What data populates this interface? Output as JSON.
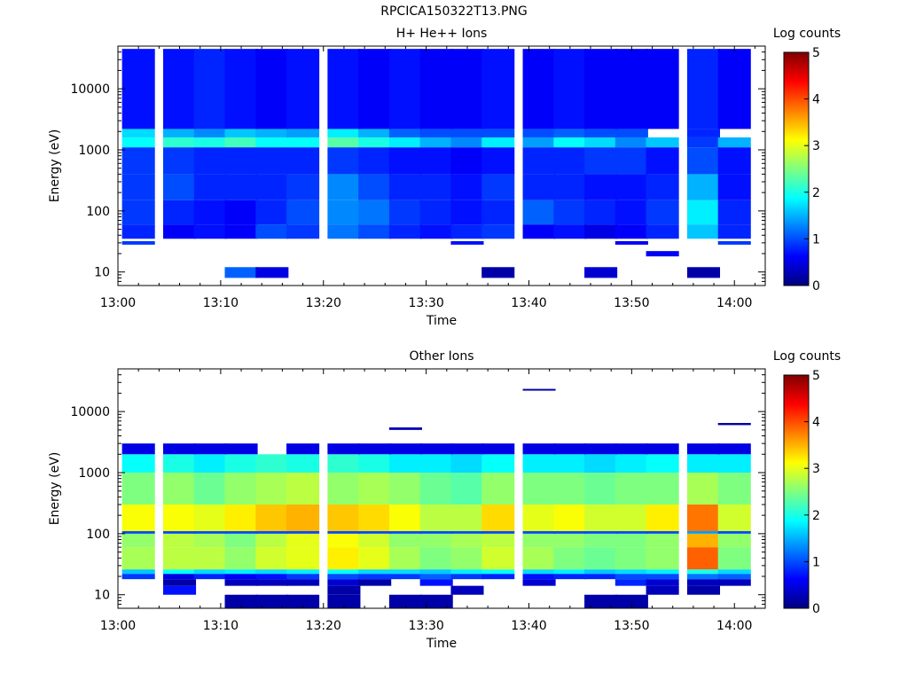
{
  "figure": {
    "title": "RPCICA150322T13.PNG"
  },
  "colormap": [
    "#00007f",
    "#0000ff",
    "#007fff",
    "#00ffff",
    "#7fff7f",
    "#ffff00",
    "#ff7f00",
    "#ff0000",
    "#7f0000"
  ],
  "chart_data": [
    {
      "type": "heatmap",
      "title": "H+ He++ Ions",
      "xlabel": "Time",
      "ylabel": "Energy (eV)",
      "x_ticks": [
        "13:00",
        "13:10",
        "13:20",
        "13:30",
        "13:40",
        "13:50",
        "14:00"
      ],
      "xlim": [
        "13:00",
        "14:03"
      ],
      "y_scale": "log",
      "ylim": [
        6,
        50000
      ],
      "y_ticks": [
        10,
        100,
        1000,
        10000
      ],
      "y_tick_labels": [
        "10",
        "100",
        "1000",
        "10000"
      ],
      "colorbar": {
        "label": "Log counts",
        "range": [
          0,
          5
        ],
        "ticks": [
          "0",
          "1",
          "2",
          "3",
          "4",
          "5"
        ]
      },
      "time_columns": [
        "13:02",
        "13:06",
        "13:09",
        "13:12",
        "13:15",
        "13:18",
        "13:22",
        "13:25",
        "13:28",
        "13:31",
        "13:34",
        "13:37",
        "13:41",
        "13:44",
        "13:47",
        "13:50",
        "13:53",
        "13:57",
        "14:00"
      ],
      "energy_bands_eV": [
        {
          "range": [
            8,
            12
          ],
          "values": [
            null,
            null,
            null,
            1.1,
            0.5,
            null,
            null,
            null,
            null,
            null,
            null,
            0.2,
            null,
            null,
            0.4,
            null,
            null,
            0.2,
            null
          ]
        },
        {
          "range": [
            18,
            22
          ],
          "values": [
            null,
            null,
            null,
            null,
            null,
            null,
            null,
            null,
            null,
            null,
            null,
            null,
            null,
            null,
            null,
            null,
            0.6,
            null,
            null
          ]
        },
        {
          "range": [
            28,
            32
          ],
          "values": [
            0.9,
            null,
            null,
            null,
            null,
            null,
            null,
            null,
            null,
            null,
            0.7,
            null,
            null,
            null,
            null,
            0.6,
            null,
            null,
            0.9
          ]
        },
        {
          "range": [
            35,
            60
          ],
          "values": [
            0.8,
            0.6,
            0.7,
            0.6,
            1.0,
            0.9,
            1.2,
            1.0,
            0.8,
            0.7,
            0.8,
            0.9,
            0.6,
            0.7,
            0.5,
            0.6,
            0.8,
            1.6,
            0.8
          ]
        },
        {
          "range": [
            60,
            150
          ],
          "values": [
            0.9,
            0.8,
            0.7,
            0.6,
            0.8,
            1.0,
            1.3,
            1.2,
            0.9,
            0.8,
            0.7,
            0.8,
            1.1,
            0.9,
            0.8,
            0.7,
            0.9,
            1.8,
            0.8
          ]
        },
        {
          "range": [
            150,
            400
          ],
          "values": [
            0.9,
            1.0,
            0.8,
            0.8,
            0.8,
            0.9,
            1.3,
            1.0,
            0.8,
            0.8,
            0.7,
            0.9,
            0.8,
            0.8,
            0.7,
            0.7,
            0.8,
            1.5,
            0.7
          ]
        },
        {
          "range": [
            400,
            1100
          ],
          "values": [
            0.9,
            0.9,
            0.8,
            0.8,
            0.8,
            0.8,
            0.9,
            0.8,
            0.7,
            0.7,
            0.6,
            0.7,
            0.8,
            0.8,
            0.9,
            0.9,
            0.7,
            1.0,
            0.7
          ]
        },
        {
          "range": [
            1100,
            1600
          ],
          "values": [
            1.9,
            2.1,
            2.0,
            2.2,
            1.9,
            1.9,
            2.3,
            2.0,
            1.8,
            1.5,
            1.3,
            1.8,
            1.4,
            1.9,
            1.7,
            1.3,
            1.6,
            0.9,
            1.5
          ]
        },
        {
          "range": [
            1600,
            2200
          ],
          "values": [
            1.7,
            1.5,
            1.3,
            1.6,
            1.5,
            1.4,
            1.8,
            1.5,
            1.1,
            1.0,
            1.0,
            1.0,
            1.0,
            1.1,
            1.0,
            1.0,
            null,
            0.8,
            null
          ]
        },
        {
          "range": [
            2200,
            45000
          ],
          "values": [
            0.7,
            0.7,
            0.8,
            0.7,
            0.6,
            0.7,
            0.7,
            0.6,
            0.7,
            0.6,
            0.6,
            0.7,
            0.6,
            0.7,
            0.6,
            0.6,
            0.6,
            0.8,
            0.6
          ]
        }
      ]
    },
    {
      "type": "heatmap",
      "title": "Other Ions",
      "xlabel": "Time",
      "ylabel": "Energy (eV)",
      "x_ticks": [
        "13:00",
        "13:10",
        "13:20",
        "13:30",
        "13:40",
        "13:50",
        "14:00"
      ],
      "xlim": [
        "13:00",
        "14:03"
      ],
      "y_scale": "log",
      "ylim": [
        6,
        50000
      ],
      "y_ticks": [
        10,
        100,
        1000,
        10000
      ],
      "y_tick_labels": [
        "10",
        "100",
        "1000",
        "10000"
      ],
      "colorbar": {
        "label": "Log counts",
        "range": [
          0,
          5
        ],
        "ticks": [
          "0",
          "1",
          "2",
          "3",
          "4",
          "5"
        ]
      },
      "time_columns": [
        "13:02",
        "13:06",
        "13:09",
        "13:12",
        "13:15",
        "13:18",
        "13:22",
        "13:25",
        "13:28",
        "13:31",
        "13:34",
        "13:37",
        "13:41",
        "13:44",
        "13:47",
        "13:50",
        "13:53",
        "13:57",
        "14:00"
      ],
      "energy_bands_eV": [
        {
          "range": [
            6,
            10
          ],
          "values": [
            null,
            null,
            null,
            0.2,
            0.2,
            0.2,
            0.2,
            null,
            0.2,
            0.2,
            null,
            null,
            null,
            null,
            0.2,
            0.2,
            null,
            null,
            null
          ]
        },
        {
          "range": [
            10,
            14
          ],
          "values": [
            null,
            0.7,
            null,
            null,
            null,
            null,
            0.2,
            null,
            null,
            null,
            0.3,
            null,
            null,
            null,
            null,
            null,
            0.3,
            0.2,
            null
          ]
        },
        {
          "range": [
            14,
            18
          ],
          "values": [
            null,
            0.2,
            null,
            0.3,
            0.3,
            0.3,
            0.4,
            0.2,
            null,
            0.7,
            null,
            null,
            0.4,
            null,
            null,
            0.8,
            0.4,
            0.3,
            0.3
          ]
        },
        {
          "range": [
            18,
            22
          ],
          "values": [
            0.9,
            0.5,
            0.8,
            0.6,
            0.7,
            0.9,
            1.0,
            0.9,
            0.9,
            1.1,
            0.9,
            0.8,
            0.7,
            0.8,
            0.8,
            1.0,
            1.0,
            1.2,
            1.1
          ]
        },
        {
          "range": [
            22,
            26
          ],
          "values": [
            1.6,
            1.9,
            1.7,
            1.8,
            1.7,
            1.8,
            1.9,
            1.7,
            1.7,
            1.6,
            1.8,
            1.9,
            1.7,
            1.8,
            1.6,
            1.7,
            1.8,
            2.0,
            1.7
          ]
        },
        {
          "range": [
            26,
            60
          ],
          "values": [
            2.7,
            2.8,
            2.8,
            2.6,
            2.9,
            3.0,
            3.2,
            3.0,
            2.7,
            2.5,
            2.6,
            2.9,
            2.7,
            2.5,
            2.4,
            2.5,
            2.6,
            3.9,
            2.5
          ]
        },
        {
          "range": [
            60,
            100
          ],
          "values": [
            2.6,
            2.8,
            2.7,
            2.5,
            2.8,
            3.0,
            3.1,
            2.9,
            2.6,
            2.6,
            2.7,
            2.8,
            2.6,
            2.6,
            2.5,
            2.5,
            2.6,
            3.5,
            2.6
          ]
        },
        {
          "range": [
            100,
            110
          ],
          "values": [
            1.0,
            1.0,
            1.0,
            1.0,
            1.0,
            1.0,
            1.0,
            1.0,
            1.0,
            1.0,
            1.0,
            1.0,
            1.0,
            1.0,
            1.0,
            1.0,
            1.0,
            1.4,
            1.0
          ]
        },
        {
          "range": [
            110,
            300
          ],
          "values": [
            3.1,
            3.1,
            3.0,
            3.2,
            3.4,
            3.5,
            3.4,
            3.3,
            3.1,
            2.8,
            2.8,
            3.3,
            3.0,
            3.1,
            2.9,
            2.9,
            3.2,
            3.8,
            2.9
          ]
        },
        {
          "range": [
            300,
            1000
          ],
          "values": [
            2.5,
            2.6,
            2.4,
            2.6,
            2.7,
            2.8,
            2.6,
            2.7,
            2.6,
            2.4,
            2.3,
            2.6,
            2.5,
            2.5,
            2.4,
            2.5,
            2.5,
            2.7,
            2.5
          ]
        },
        {
          "range": [
            1000,
            2000
          ],
          "values": [
            1.9,
            2.0,
            1.8,
            2.0,
            2.1,
            2.0,
            2.1,
            2.0,
            1.8,
            1.8,
            1.7,
            1.9,
            1.8,
            1.8,
            1.7,
            1.8,
            1.9,
            1.8,
            1.8
          ]
        },
        {
          "range": [
            2000,
            3000
          ],
          "values": [
            0.5,
            0.5,
            0.5,
            0.5,
            null,
            0.5,
            0.5,
            0.5,
            0.5,
            0.5,
            0.5,
            0.5,
            0.5,
            0.5,
            0.5,
            0.5,
            0.5,
            0.5,
            0.5
          ]
        },
        {
          "range": [
            5000,
            5500
          ],
          "values": [
            null,
            null,
            null,
            null,
            null,
            null,
            null,
            null,
            0.3,
            null,
            null,
            null,
            null,
            null,
            null,
            null,
            null,
            null,
            null
          ]
        },
        {
          "range": [
            6000,
            6500
          ],
          "values": [
            null,
            null,
            null,
            null,
            null,
            null,
            null,
            null,
            null,
            null,
            null,
            null,
            null,
            null,
            null,
            null,
            null,
            null,
            0.2
          ]
        },
        {
          "range": [
            22000,
            23500
          ],
          "values": [
            null,
            null,
            null,
            null,
            null,
            null,
            null,
            null,
            null,
            null,
            null,
            null,
            0.2,
            null,
            null,
            null,
            null,
            null,
            null
          ]
        }
      ]
    }
  ]
}
